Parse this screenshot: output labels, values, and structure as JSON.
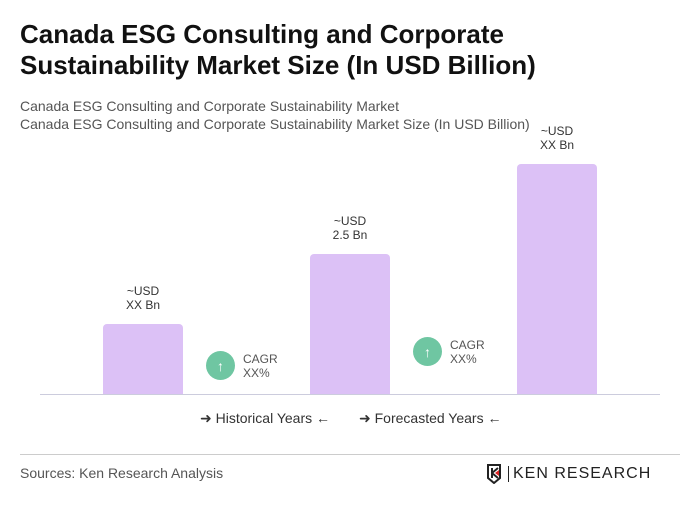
{
  "title": "Canada ESG Consulting and Corporate Sustainability Market Size (In USD Billion)",
  "subtitle1": "Canada ESG Consulting and Corporate Sustainability Market",
  "subtitle2": "Canada ESG Consulting and Corporate Sustainability Market Size (In USD Billion)",
  "chart_data": {
    "type": "bar",
    "categories": [
      "",
      "",
      ""
    ],
    "values": [
      null,
      2.5,
      null
    ],
    "data_labels": [
      [
        "~USD",
        "XX Bn"
      ],
      [
        "~USD",
        "2.5 Bn"
      ],
      [
        "~USD",
        "XX Bn"
      ]
    ],
    "bar_color": "#dcc1f6",
    "cagr": [
      {
        "label": "CAGR",
        "value": "XX%"
      },
      {
        "label": "CAGR",
        "value": "XX%"
      }
    ],
    "cagr_color": "#6fc6a2",
    "legend": [
      "Historical Years",
      "Forecasted Years"
    ],
    "grid": false
  },
  "footer": {
    "source": "Sources: Ken Research Analysis",
    "logo": "KEN RESEARCH"
  }
}
